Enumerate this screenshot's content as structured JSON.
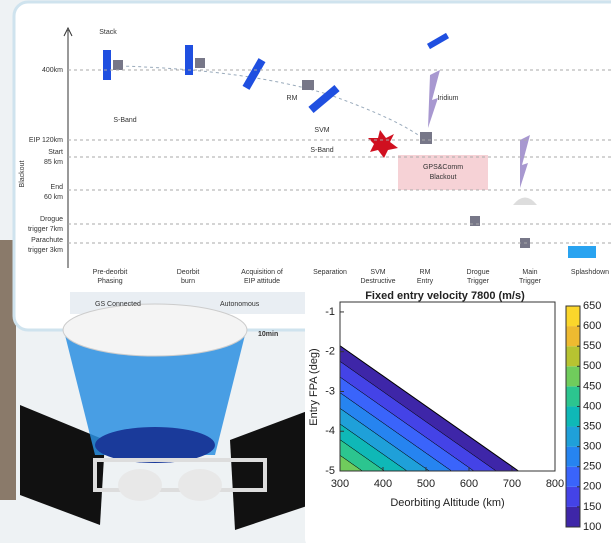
{
  "timeline": {
    "altitude_labels": [
      [
        "400km"
      ],
      [
        "EIP 120km"
      ],
      [
        "Start",
        "85 km"
      ],
      [
        "End",
        "60 km"
      ],
      [
        "Drogue",
        "trigger 7km"
      ],
      [
        "Parachute",
        "trigger 3km"
      ]
    ],
    "blackout_label": "Blackout",
    "phases": [
      [
        "Pre-deorbit",
        "Phasing"
      ],
      [
        "Deorbit",
        "burn"
      ],
      [
        "Acquisition of",
        "EIP attitude"
      ],
      [
        "Separation"
      ],
      [
        "SVM",
        "Destructive"
      ],
      [
        "RM",
        "Entry"
      ],
      [
        "Drogue",
        "Trigger"
      ],
      [
        "Main",
        "Trigger"
      ],
      [
        "Splashdown"
      ]
    ],
    "annotations": {
      "stack": "Stack",
      "sband_1": "S-Band",
      "rm": "RM",
      "svm": "SVM",
      "sband_2": "S-Band",
      "iridium": "Iridium",
      "gps_blackout": [
        "GPS&Comm",
        "Blackout"
      ]
    },
    "footer": [
      "GS Connected",
      "Autonomous",
      "10min"
    ]
  },
  "chart_data": {
    "type": "contour",
    "title": "Fixed entry velocity 7800 (m/s)",
    "xlabel": "Deorbiting Altitude (km)",
    "ylabel": "Entry FPA (deg)",
    "xlim": [
      300,
      800
    ],
    "ylim": [
      -5,
      -0.75
    ],
    "xticks": [
      300,
      400,
      500,
      600,
      700,
      800
    ],
    "yticks": [
      -1,
      -2,
      -3,
      -4,
      -5
    ],
    "boundary": {
      "x": [
        300,
        715
      ],
      "y": [
        -1.85,
        -5
      ]
    },
    "clim": [
      100,
      650
    ],
    "colorbar_ticks": [
      100,
      150,
      200,
      250,
      300,
      350,
      400,
      450,
      500,
      550,
      600,
      650
    ],
    "colormap": [
      "#3e26a8",
      "#4443e7",
      "#3a64fb",
      "#2684f0",
      "#1fa0d9",
      "#0fb8b7",
      "#2cc58f",
      "#70cc5c",
      "#b7c331",
      "#eeba30",
      "#fbd62b",
      "#f9fb15"
    ],
    "filled_levels": [
      100,
      150,
      200,
      250,
      300,
      350,
      400,
      450
    ]
  }
}
